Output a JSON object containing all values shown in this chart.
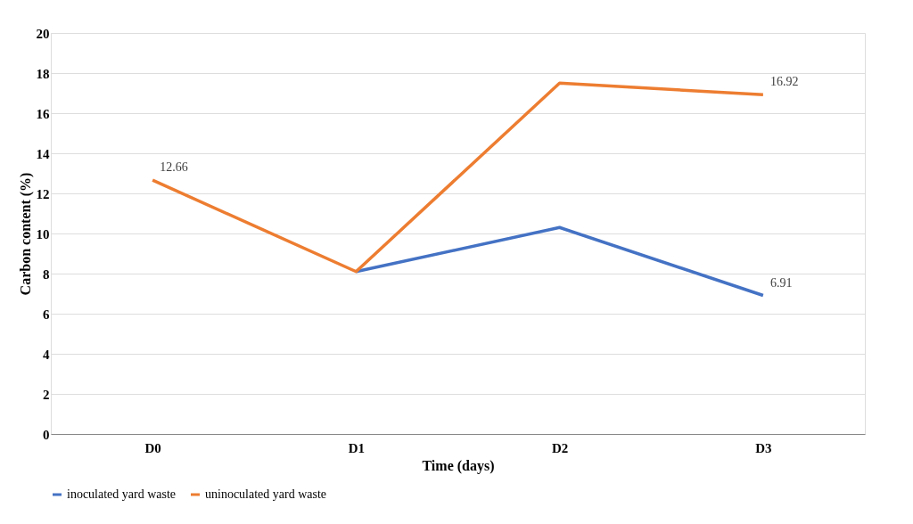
{
  "chart_data": {
    "type": "line",
    "xlabel": "Time (days)",
    "ylabel": "Carbon content (%)",
    "categories": [
      "D0",
      "D1",
      "D2",
      "D3"
    ],
    "series": [
      {
        "name": "inoculated yard waste",
        "color": "#4472c4",
        "values": [
          null,
          8.1,
          10.3,
          6.91
        ],
        "value_labels": [
          null,
          null,
          null,
          "6.91"
        ]
      },
      {
        "name": "uninoculated yard waste",
        "color": "#ed7d31",
        "values": [
          12.66,
          8.1,
          17.5,
          16.92
        ],
        "value_labels": [
          "12.66",
          null,
          null,
          "16.92"
        ]
      }
    ],
    "ylim": [
      0,
      20
    ],
    "yticks": [
      0,
      2,
      4,
      6,
      8,
      10,
      12,
      14,
      16,
      18,
      20
    ],
    "grid": "y",
    "legend": "bottom",
    "marker": "none",
    "line_style": "solid"
  }
}
